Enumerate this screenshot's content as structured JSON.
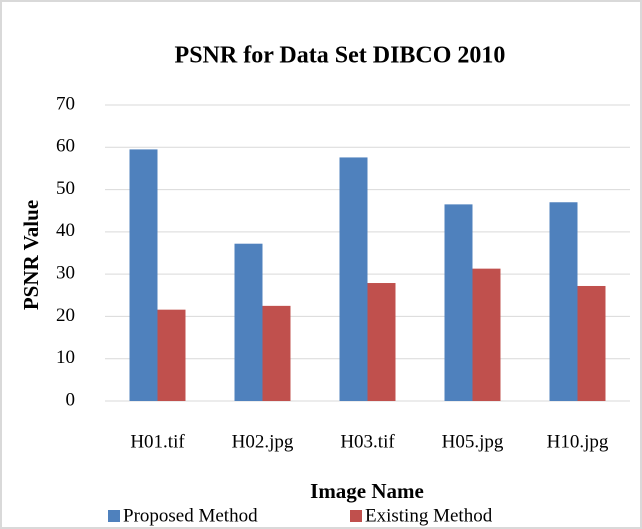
{
  "chart_data": {
    "type": "bar",
    "title": "PSNR for Data Set DIBCO 2010",
    "x_label": "Image Name",
    "y_label": "PSNR Value",
    "categories": [
      "H01.tif",
      "H02.jpg",
      "H03.tif",
      "H05.jpg",
      "H10.jpg"
    ],
    "series": [
      {
        "name": "Proposed Method",
        "color": "#4f81bd",
        "values": [
          59.5,
          37.2,
          57.6,
          46.5,
          47
        ]
      },
      {
        "name": "Existing Method",
        "color": "#c0504d",
        "values": [
          21.6,
          22.5,
          27.9,
          31.3,
          27.2
        ]
      }
    ],
    "ylim": [
      0,
      70
    ],
    "yticks": [
      0,
      10,
      20,
      30,
      40,
      50,
      60,
      70
    ],
    "grid": true,
    "legend": "bottom"
  }
}
